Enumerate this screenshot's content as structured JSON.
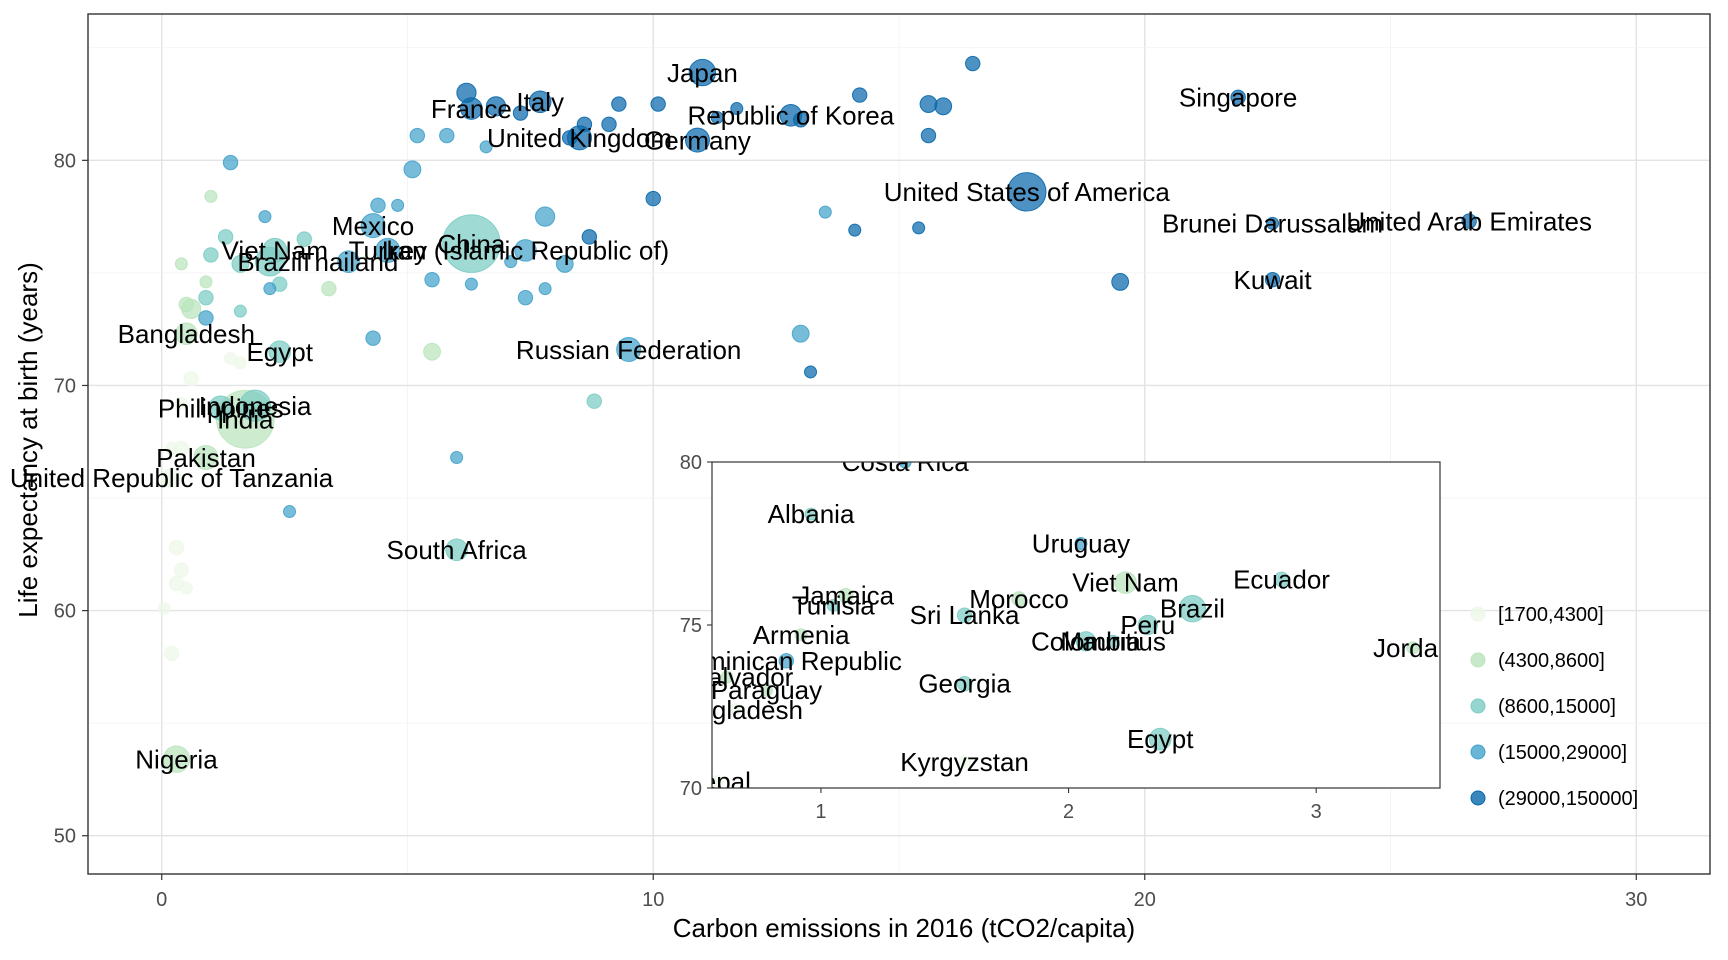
{
  "chart_data": [
    {
      "type": "scatter",
      "xlabel": "Carbon emissions in 2016 (tCO2/capita)",
      "ylabel": "Life expectancy at birth (years)",
      "xlim": [
        -1.5,
        31.5
      ],
      "ylim": [
        48.3,
        86.5
      ],
      "x_ticks": [
        0,
        10,
        20,
        30
      ],
      "y_ticks": [
        50,
        60,
        70,
        80
      ],
      "x_tick_labels": [
        "0",
        "10",
        "20",
        "30"
      ],
      "y_tick_labels": [
        "50",
        "60",
        "70",
        "80"
      ],
      "grid": true,
      "legend": {
        "position": "bottom-right",
        "entries": [
          "[1700,4300]",
          "(4300,8600]",
          "(8600,15000]",
          "(15000,29000]",
          "(29000,150000]"
        ]
      },
      "colors": [
        "#edf8e9",
        "#bae4bc",
        "#7bccc4",
        "#43a2ca",
        "#0868ac"
      ],
      "points": [
        {
          "x": 11.0,
          "y": 83.9,
          "g": 4,
          "s": 1.1,
          "label": "Japan"
        },
        {
          "x": 6.3,
          "y": 82.3,
          "g": 4,
          "s": 0.9,
          "label": "France"
        },
        {
          "x": 7.7,
          "y": 82.6,
          "g": 4,
          "s": 0.9,
          "label": "Italy"
        },
        {
          "x": 12.8,
          "y": 82.0,
          "g": 4,
          "s": 0.9,
          "label": "Republic of Korea"
        },
        {
          "x": 8.5,
          "y": 81.0,
          "g": 4,
          "s": 1.0,
          "label": "United Kingdom"
        },
        {
          "x": 10.9,
          "y": 80.9,
          "g": 4,
          "s": 1.0,
          "label": "Germany"
        },
        {
          "x": 21.9,
          "y": 82.8,
          "g": 4,
          "s": 0.6,
          "label": "Singapore"
        },
        {
          "x": 17.6,
          "y": 78.6,
          "g": 4,
          "s": 1.6,
          "label": "United States of America"
        },
        {
          "x": 22.6,
          "y": 77.2,
          "g": 4,
          "s": 0.5,
          "label": "Brunei Darussalam"
        },
        {
          "x": 26.6,
          "y": 77.3,
          "g": 4,
          "s": 0.6,
          "label": "United Arab Emirates"
        },
        {
          "x": 22.6,
          "y": 74.7,
          "g": 4,
          "s": 0.6,
          "label": "Kuwait"
        },
        {
          "x": 4.3,
          "y": 77.1,
          "g": 3,
          "s": 1.0,
          "label": "Mexico"
        },
        {
          "x": 6.3,
          "y": 76.3,
          "g": 2,
          "s": 2.4,
          "label": "China"
        },
        {
          "x": 4.6,
          "y": 76.0,
          "g": 3,
          "s": 1.0,
          "label": "Turkey"
        },
        {
          "x": 7.4,
          "y": 76.0,
          "g": 3,
          "s": 0.9,
          "label": "Iran (Islamic Republic of)"
        },
        {
          "x": 2.3,
          "y": 76.0,
          "g": 2,
          "s": 1.0,
          "label": "Viet Nam"
        },
        {
          "x": 2.2,
          "y": 75.5,
          "g": 2,
          "s": 1.2,
          "label": "Brazil"
        },
        {
          "x": 3.8,
          "y": 75.5,
          "g": 3,
          "s": 0.9,
          "label": "Thailand"
        },
        {
          "x": 9.5,
          "y": 71.6,
          "g": 3,
          "s": 1.0,
          "label": "Russian Federation"
        },
        {
          "x": 0.5,
          "y": 72.3,
          "g": 1,
          "s": 0.9,
          "label": "Bangladesh"
        },
        {
          "x": 2.4,
          "y": 71.5,
          "g": 2,
          "s": 0.9,
          "label": "Egypt"
        },
        {
          "x": 1.9,
          "y": 69.1,
          "g": 2,
          "s": 1.3,
          "label": "Indonesia"
        },
        {
          "x": 1.2,
          "y": 69.0,
          "g": 2,
          "s": 1.0,
          "label": "Philippines"
        },
        {
          "x": 1.7,
          "y": 68.5,
          "g": 1,
          "s": 2.4,
          "label": "India"
        },
        {
          "x": 0.9,
          "y": 66.8,
          "g": 1,
          "s": 1.0,
          "label": "Pakistan"
        },
        {
          "x": 0.2,
          "y": 65.9,
          "g": 0,
          "s": 0.8,
          "label": "United Republic of Tanzania"
        },
        {
          "x": 6.0,
          "y": 62.7,
          "g": 2,
          "s": 0.9,
          "label": "South Africa"
        },
        {
          "x": 0.3,
          "y": 53.4,
          "g": 1,
          "s": 1.1,
          "label": "Nigeria"
        },
        {
          "x": 6.2,
          "y": 83.0,
          "g": 4,
          "s": 0.8
        },
        {
          "x": 6.8,
          "y": 82.4,
          "g": 4,
          "s": 0.8
        },
        {
          "x": 7.3,
          "y": 82.1,
          "g": 4,
          "s": 0.6
        },
        {
          "x": 8.3,
          "y": 81.0,
          "g": 4,
          "s": 0.6
        },
        {
          "x": 8.6,
          "y": 81.6,
          "g": 4,
          "s": 0.6
        },
        {
          "x": 9.1,
          "y": 81.6,
          "g": 4,
          "s": 0.6
        },
        {
          "x": 9.3,
          "y": 82.5,
          "g": 4,
          "s": 0.6
        },
        {
          "x": 10.1,
          "y": 82.5,
          "g": 4,
          "s": 0.6
        },
        {
          "x": 11.3,
          "y": 81.9,
          "g": 4,
          "s": 0.5
        },
        {
          "x": 11.7,
          "y": 82.3,
          "g": 4,
          "s": 0.5
        },
        {
          "x": 13.0,
          "y": 81.8,
          "g": 4,
          "s": 0.6
        },
        {
          "x": 14.2,
          "y": 82.9,
          "g": 4,
          "s": 0.6
        },
        {
          "x": 15.6,
          "y": 82.5,
          "g": 4,
          "s": 0.7
        },
        {
          "x": 15.9,
          "y": 82.4,
          "g": 4,
          "s": 0.7
        },
        {
          "x": 16.5,
          "y": 84.3,
          "g": 4,
          "s": 0.6
        },
        {
          "x": 15.6,
          "y": 81.1,
          "g": 4,
          "s": 0.6
        },
        {
          "x": 10.0,
          "y": 78.3,
          "g": 4,
          "s": 0.6
        },
        {
          "x": 14.1,
          "y": 76.9,
          "g": 4,
          "s": 0.5
        },
        {
          "x": 15.4,
          "y": 77.0,
          "g": 4,
          "s": 0.5
        },
        {
          "x": 8.7,
          "y": 76.6,
          "g": 4,
          "s": 0.6
        },
        {
          "x": 19.5,
          "y": 74.6,
          "g": 4,
          "s": 0.7
        },
        {
          "x": 13.2,
          "y": 70.6,
          "g": 4,
          "s": 0.5
        },
        {
          "x": 5.2,
          "y": 81.1,
          "g": 3,
          "s": 0.6
        },
        {
          "x": 5.8,
          "y": 81.1,
          "g": 3,
          "s": 0.6
        },
        {
          "x": 6.6,
          "y": 80.6,
          "g": 3,
          "s": 0.5
        },
        {
          "x": 5.1,
          "y": 79.6,
          "g": 3,
          "s": 0.7
        },
        {
          "x": 4.4,
          "y": 78.0,
          "g": 3,
          "s": 0.6
        },
        {
          "x": 4.8,
          "y": 78.0,
          "g": 3,
          "s": 0.5
        },
        {
          "x": 1.4,
          "y": 79.9,
          "g": 3,
          "s": 0.6
        },
        {
          "x": 2.1,
          "y": 77.5,
          "g": 3,
          "s": 0.5
        },
        {
          "x": 7.8,
          "y": 77.5,
          "g": 3,
          "s": 0.8
        },
        {
          "x": 13.5,
          "y": 77.7,
          "g": 3,
          "s": 0.5
        },
        {
          "x": 7.1,
          "y": 75.5,
          "g": 3,
          "s": 0.5
        },
        {
          "x": 8.2,
          "y": 75.4,
          "g": 3,
          "s": 0.7
        },
        {
          "x": 5.5,
          "y": 74.7,
          "g": 3,
          "s": 0.6
        },
        {
          "x": 6.3,
          "y": 74.5,
          "g": 3,
          "s": 0.5
        },
        {
          "x": 7.8,
          "y": 74.3,
          "g": 3,
          "s": 0.5
        },
        {
          "x": 7.4,
          "y": 73.9,
          "g": 3,
          "s": 0.6
        },
        {
          "x": 2.2,
          "y": 74.3,
          "g": 3,
          "s": 0.5
        },
        {
          "x": 4.3,
          "y": 72.1,
          "g": 3,
          "s": 0.6
        },
        {
          "x": 13.0,
          "y": 72.3,
          "g": 3,
          "s": 0.7
        },
        {
          "x": 6.0,
          "y": 66.8,
          "g": 3,
          "s": 0.5
        },
        {
          "x": 2.6,
          "y": 64.4,
          "g": 3,
          "s": 0.5
        },
        {
          "x": 0.9,
          "y": 73.0,
          "g": 3,
          "s": 0.6
        },
        {
          "x": 8.8,
          "y": 69.3,
          "g": 2,
          "s": 0.6
        },
        {
          "x": 2.9,
          "y": 76.5,
          "g": 2,
          "s": 0.6
        },
        {
          "x": 1.6,
          "y": 75.4,
          "g": 2,
          "s": 0.7
        },
        {
          "x": 1.3,
          "y": 76.6,
          "g": 2,
          "s": 0.6
        },
        {
          "x": 1.0,
          "y": 75.8,
          "g": 2,
          "s": 0.6
        },
        {
          "x": 2.4,
          "y": 74.5,
          "g": 2,
          "s": 0.6
        },
        {
          "x": 0.9,
          "y": 73.9,
          "g": 2,
          "s": 0.6
        },
        {
          "x": 1.6,
          "y": 73.3,
          "g": 2,
          "s": 0.5
        },
        {
          "x": 1.0,
          "y": 78.4,
          "g": 1,
          "s": 0.5
        },
        {
          "x": 0.4,
          "y": 75.4,
          "g": 1,
          "s": 0.5
        },
        {
          "x": 0.9,
          "y": 74.6,
          "g": 1,
          "s": 0.5
        },
        {
          "x": 0.5,
          "y": 73.6,
          "g": 1,
          "s": 0.6
        },
        {
          "x": 0.6,
          "y": 73.4,
          "g": 1,
          "s": 0.8
        },
        {
          "x": 3.4,
          "y": 74.3,
          "g": 1,
          "s": 0.6
        },
        {
          "x": 5.5,
          "y": 71.5,
          "g": 1,
          "s": 0.7
        },
        {
          "x": 0.6,
          "y": 70.3,
          "g": 0,
          "s": 0.6
        },
        {
          "x": 1.6,
          "y": 71.0,
          "g": 0,
          "s": 0.5
        },
        {
          "x": 0.4,
          "y": 69.2,
          "g": 0,
          "s": 0.5
        },
        {
          "x": 0.2,
          "y": 67.2,
          "g": 0,
          "s": 0.5
        },
        {
          "x": 0.4,
          "y": 67.2,
          "g": 0,
          "s": 0.6
        },
        {
          "x": 0.3,
          "y": 62.8,
          "g": 0,
          "s": 0.6
        },
        {
          "x": 0.4,
          "y": 61.8,
          "g": 0,
          "s": 0.6
        },
        {
          "x": 0.3,
          "y": 61.2,
          "g": 0,
          "s": 0.6
        },
        {
          "x": 0.5,
          "y": 61.0,
          "g": 0,
          "s": 0.5
        },
        {
          "x": 0.05,
          "y": 60.1,
          "g": 0,
          "s": 0.5
        },
        {
          "x": 0.2,
          "y": 58.1,
          "g": 0,
          "s": 0.6
        },
        {
          "x": 0.1,
          "y": 65.8,
          "g": 0,
          "s": 0.5
        },
        {
          "x": 1.4,
          "y": 71.2,
          "g": 0,
          "s": 0.5
        }
      ]
    },
    {
      "type": "scatter",
      "xlim": [
        0.56,
        3.5
      ],
      "ylim": [
        70,
        80
      ],
      "x_ticks": [
        1,
        2,
        3
      ],
      "y_ticks": [
        70,
        75,
        80
      ],
      "x_tick_labels": [
        "1",
        "2",
        "3"
      ],
      "y_tick_labels": [
        "70",
        "75",
        "80"
      ],
      "grid": false,
      "points": [
        {
          "x": 1.34,
          "y": 80.0,
          "g": 3,
          "s": 0.5,
          "label": "Costa Rica"
        },
        {
          "x": 0.96,
          "y": 78.4,
          "g": 2,
          "s": 0.5,
          "label": "Albania"
        },
        {
          "x": 2.05,
          "y": 77.5,
          "g": 3,
          "s": 0.5,
          "label": "Uruguay"
        },
        {
          "x": 2.23,
          "y": 76.3,
          "g": 1,
          "s": 0.9,
          "label": "Viet Nam"
        },
        {
          "x": 2.86,
          "y": 76.4,
          "g": 2,
          "s": 0.6,
          "label": "Ecuador"
        },
        {
          "x": 1.1,
          "y": 75.9,
          "g": 1,
          "s": 0.6,
          "label": "Jamaica"
        },
        {
          "x": 1.05,
          "y": 75.6,
          "g": 2,
          "s": 0.5,
          "label": "Tunisia"
        },
        {
          "x": 1.8,
          "y": 75.8,
          "g": 1,
          "s": 0.6,
          "label": "Morocco"
        },
        {
          "x": 2.5,
          "y": 75.5,
          "g": 2,
          "s": 1.1,
          "label": "Brazil"
        },
        {
          "x": 1.58,
          "y": 75.3,
          "g": 2,
          "s": 0.6,
          "label": "Sri Lanka"
        },
        {
          "x": 2.32,
          "y": 75.0,
          "g": 2,
          "s": 0.8,
          "label": "Peru"
        },
        {
          "x": 2.07,
          "y": 74.5,
          "g": 2,
          "s": 0.8,
          "label": "Colombia"
        },
        {
          "x": 2.18,
          "y": 74.5,
          "g": 2,
          "s": 0.5,
          "label": "Mauritius"
        },
        {
          "x": 3.39,
          "y": 74.3,
          "g": 1,
          "s": 0.5,
          "label": "Jordan"
        },
        {
          "x": 0.92,
          "y": 74.7,
          "g": 1,
          "s": 0.5,
          "label": "Armenia"
        },
        {
          "x": 0.86,
          "y": 73.9,
          "g": 3,
          "s": 0.6,
          "label": "Dominican Republic"
        },
        {
          "x": 0.62,
          "y": 73.4,
          "g": 1,
          "s": 0.5,
          "label": "El Salvador"
        },
        {
          "x": 0.78,
          "y": 73.0,
          "g": 1,
          "s": 0.5,
          "label": "Paraguay"
        },
        {
          "x": 1.58,
          "y": 73.2,
          "g": 2,
          "s": 0.6,
          "label": "Georgia"
        },
        {
          "x": 0.65,
          "y": 72.4,
          "g": 0,
          "s": 0.5,
          "label": "Bangladesh"
        },
        {
          "x": 2.37,
          "y": 71.5,
          "g": 2,
          "s": 0.9,
          "label": "Egypt"
        },
        {
          "x": 1.58,
          "y": 70.8,
          "g": 0,
          "s": 0.5,
          "label": "Kyrgyzstan"
        },
        {
          "x": 0.58,
          "y": 70.2,
          "g": 0,
          "s": 0.5,
          "label": "Nepal"
        }
      ]
    }
  ]
}
